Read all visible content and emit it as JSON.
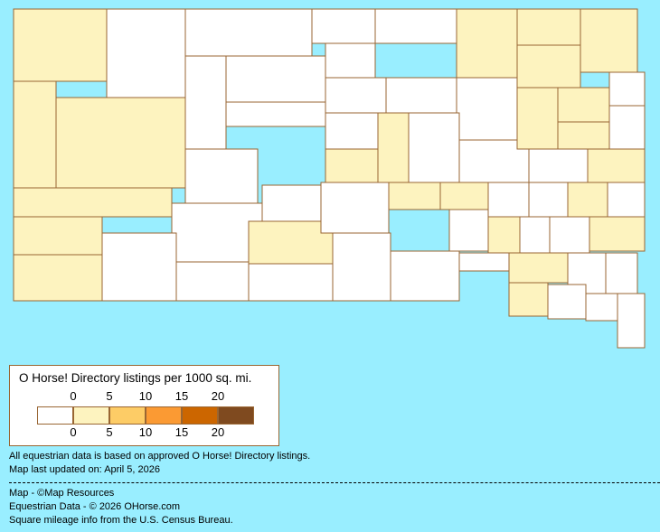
{
  "colors": {
    "background": "#99eeff",
    "border": "#996633",
    "scale": [
      "#ffffff",
      "#fdf3bf",
      "#fdcc66",
      "#fb9a33",
      "#cc6600",
      "#7f4a1f"
    ]
  },
  "map": {
    "county_levels": [
      1,
      0,
      0,
      0,
      0,
      1,
      1,
      1,
      1,
      1,
      1,
      1,
      1,
      1,
      0,
      0,
      0,
      0,
      0,
      0,
      0,
      1,
      0,
      0,
      0,
      0,
      0,
      0,
      0,
      1,
      0,
      0,
      1,
      1,
      1,
      0,
      0,
      0,
      0,
      1,
      1,
      1,
      1,
      0,
      0,
      0,
      0,
      1,
      0,
      1,
      0,
      0,
      1,
      0,
      1,
      0,
      0,
      1,
      0,
      0,
      0,
      0
    ]
  },
  "legend": {
    "title": "O Horse! Directory listings per 1000 sq. mi.",
    "ticks": [
      "0",
      "5",
      "10",
      "15",
      "20"
    ]
  },
  "notes": [
    "All equestrian data is based on approved O Horse! Directory listings.",
    "Map last updated on: April 5, 2026"
  ],
  "credits": [
    "Map - ©Map Resources",
    "Equestrian Data - © 2026 OHorse.com",
    "Square mileage info from the U.S. Census Bureau."
  ]
}
